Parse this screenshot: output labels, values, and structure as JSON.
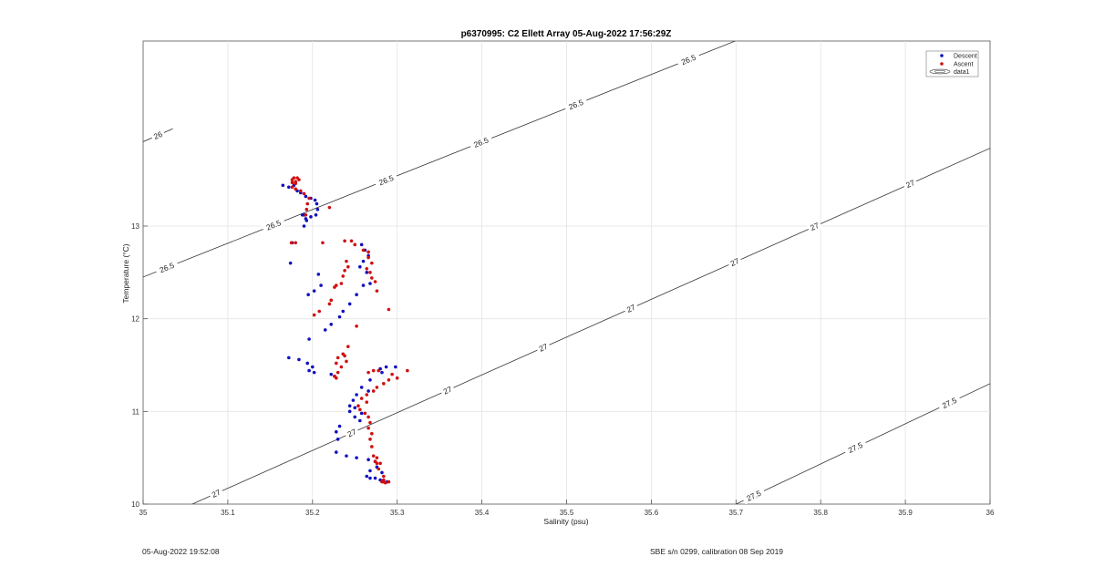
{
  "chart_data": {
    "type": "scatter",
    "title": "p6370995: C2 Ellett Array 05-Aug-2022 17:56:29Z",
    "xlabel": "Salinity (psu)",
    "ylabel": "Temperature (°C)",
    "xlim": [
      35,
      36
    ],
    "ylim": [
      10,
      14.0
    ],
    "x_ticks": [
      "35",
      "35.1",
      "35.2",
      "35.3",
      "35.4",
      "35.5",
      "35.6",
      "35.7",
      "35.8",
      "35.9",
      "36"
    ],
    "y_ticks": [
      "10",
      "11",
      "12",
      "13"
    ],
    "grid": true,
    "legend_position": "top-right",
    "legend": [
      "Descent",
      "Ascent",
      "data1"
    ],
    "colors": {
      "descent": "#1010c0",
      "ascent": "#d01010",
      "contour": "#333333"
    },
    "series": [
      {
        "name": "Descent",
        "points": [
          [
            35.165,
            13.44
          ],
          [
            35.172,
            13.42
          ],
          [
            35.178,
            13.44
          ],
          [
            35.182,
            13.38
          ],
          [
            35.186,
            13.36
          ],
          [
            35.192,
            13.32
          ],
          [
            35.198,
            13.3
          ],
          [
            35.203,
            13.28
          ],
          [
            35.205,
            13.24
          ],
          [
            35.206,
            13.18
          ],
          [
            35.204,
            13.12
          ],
          [
            35.198,
            13.1
          ],
          [
            35.193,
            13.06
          ],
          [
            35.19,
            13.0
          ],
          [
            35.174,
            12.6
          ],
          [
            35.207,
            12.48
          ],
          [
            35.21,
            12.36
          ],
          [
            35.202,
            12.3
          ],
          [
            35.195,
            12.26
          ],
          [
            35.19,
            13.12
          ],
          [
            35.188,
            13.12
          ],
          [
            35.192,
            13.08
          ],
          [
            35.176,
            12.82
          ],
          [
            35.258,
            12.8
          ],
          [
            35.262,
            12.74
          ],
          [
            35.266,
            12.68
          ],
          [
            35.26,
            12.62
          ],
          [
            35.256,
            12.56
          ],
          [
            35.264,
            12.5
          ],
          [
            35.268,
            12.38
          ],
          [
            35.26,
            12.36
          ],
          [
            35.252,
            12.26
          ],
          [
            35.244,
            12.16
          ],
          [
            35.236,
            12.08
          ],
          [
            35.232,
            12.02
          ],
          [
            35.222,
            11.94
          ],
          [
            35.215,
            11.88
          ],
          [
            35.196,
            11.78
          ],
          [
            35.172,
            11.58
          ],
          [
            35.184,
            11.56
          ],
          [
            35.194,
            11.52
          ],
          [
            35.2,
            11.48
          ],
          [
            35.202,
            11.42
          ],
          [
            35.196,
            11.44
          ],
          [
            35.222,
            11.4
          ],
          [
            35.226,
            11.38
          ],
          [
            35.28,
            11.46
          ],
          [
            35.287,
            11.48
          ],
          [
            35.298,
            11.48
          ],
          [
            35.282,
            11.42
          ],
          [
            35.268,
            11.34
          ],
          [
            35.258,
            11.26
          ],
          [
            35.266,
            11.22
          ],
          [
            35.252,
            11.18
          ],
          [
            35.248,
            11.12
          ],
          [
            35.244,
            11.06
          ],
          [
            35.25,
            11.04
          ],
          [
            35.244,
            11.0
          ],
          [
            35.258,
            10.98
          ],
          [
            35.25,
            10.94
          ],
          [
            35.256,
            10.9
          ],
          [
            35.232,
            10.84
          ],
          [
            35.228,
            10.78
          ],
          [
            35.23,
            10.7
          ],
          [
            35.228,
            10.56
          ],
          [
            35.24,
            10.52
          ],
          [
            35.252,
            10.5
          ],
          [
            35.266,
            10.48
          ],
          [
            35.274,
            10.46
          ],
          [
            35.276,
            10.4
          ],
          [
            35.268,
            10.36
          ],
          [
            35.282,
            10.34
          ],
          [
            35.264,
            10.3
          ],
          [
            35.268,
            10.28
          ],
          [
            35.274,
            10.28
          ],
          [
            35.28,
            10.26
          ],
          [
            35.284,
            10.24
          ],
          [
            35.288,
            10.24
          ]
        ]
      },
      {
        "name": "Ascent",
        "points": [
          [
            35.176,
            13.5
          ],
          [
            35.178,
            13.52
          ],
          [
            35.182,
            13.52
          ],
          [
            35.184,
            13.5
          ],
          [
            35.18,
            13.48
          ],
          [
            35.176,
            13.47
          ],
          [
            35.18,
            13.46
          ],
          [
            35.176,
            13.42
          ],
          [
            35.18,
            13.4
          ],
          [
            35.186,
            13.38
          ],
          [
            35.19,
            13.35
          ],
          [
            35.196,
            13.3
          ],
          [
            35.194,
            13.24
          ],
          [
            35.193,
            13.18
          ],
          [
            35.192,
            13.12
          ],
          [
            35.24,
            12.62
          ],
          [
            35.242,
            12.56
          ],
          [
            35.238,
            12.52
          ],
          [
            35.236,
            12.46
          ],
          [
            35.234,
            12.38
          ],
          [
            35.228,
            12.36
          ],
          [
            35.226,
            12.34
          ],
          [
            35.22,
            13.2
          ],
          [
            35.222,
            12.2
          ],
          [
            35.22,
            12.16
          ],
          [
            35.208,
            12.08
          ],
          [
            35.202,
            12.04
          ],
          [
            35.175,
            12.82
          ],
          [
            35.18,
            12.82
          ],
          [
            35.212,
            12.82
          ],
          [
            35.238,
            12.84
          ],
          [
            35.246,
            12.84
          ],
          [
            35.25,
            12.8
          ],
          [
            35.26,
            12.74
          ],
          [
            35.266,
            12.72
          ],
          [
            35.266,
            12.66
          ],
          [
            35.27,
            12.6
          ],
          [
            35.264,
            12.54
          ],
          [
            35.268,
            12.5
          ],
          [
            35.27,
            12.44
          ],
          [
            35.274,
            12.4
          ],
          [
            35.276,
            12.3
          ],
          [
            35.29,
            12.1
          ],
          [
            35.252,
            11.92
          ],
          [
            35.242,
            11.7
          ],
          [
            35.236,
            11.62
          ],
          [
            35.23,
            11.58
          ],
          [
            35.228,
            11.52
          ],
          [
            35.238,
            11.6
          ],
          [
            35.24,
            11.54
          ],
          [
            35.234,
            11.48
          ],
          [
            35.23,
            11.42
          ],
          [
            35.226,
            11.38
          ],
          [
            35.228,
            11.36
          ],
          [
            35.272,
            11.44
          ],
          [
            35.278,
            11.44
          ],
          [
            35.266,
            11.42
          ],
          [
            35.294,
            11.4
          ],
          [
            35.3,
            11.36
          ],
          [
            35.312,
            11.44
          ],
          [
            35.29,
            11.34
          ],
          [
            35.284,
            11.3
          ],
          [
            35.276,
            11.26
          ],
          [
            35.272,
            11.22
          ],
          [
            35.264,
            11.18
          ],
          [
            35.258,
            11.14
          ],
          [
            35.264,
            11.1
          ],
          [
            35.254,
            11.06
          ],
          [
            35.256,
            11.02
          ],
          [
            35.262,
            10.98
          ],
          [
            35.266,
            10.94
          ],
          [
            35.268,
            10.88
          ],
          [
            35.266,
            10.82
          ],
          [
            35.27,
            10.76
          ],
          [
            35.268,
            10.7
          ],
          [
            35.27,
            10.62
          ],
          [
            35.272,
            10.52
          ],
          [
            35.276,
            10.5
          ],
          [
            35.274,
            10.46
          ],
          [
            35.276,
            10.44
          ],
          [
            35.28,
            10.44
          ],
          [
            35.278,
            10.38
          ],
          [
            35.284,
            10.3
          ],
          [
            35.284,
            10.26
          ],
          [
            35.282,
            10.24
          ],
          [
            35.286,
            10.23
          ],
          [
            35.29,
            10.24
          ]
        ]
      }
    ],
    "contours": [
      {
        "label": "26",
        "points": [
          [
            35.0,
            13.91
          ],
          [
            35.035,
            14.05
          ]
        ],
        "labels_at": [
          0.5
        ]
      },
      {
        "label": "26.5",
        "points": [
          [
            35.0,
            12.45
          ],
          [
            35.7,
            15.0
          ]
        ],
        "labels_at": [
          0.04,
          0.22,
          0.41,
          0.57,
          0.73,
          0.92
        ]
      },
      {
        "label": "27",
        "points": [
          [
            35.058,
            10.0
          ],
          [
            36.0,
            13.84
          ]
        ],
        "labels_at": [
          0.03,
          0.2,
          0.32,
          0.44,
          0.55,
          0.68,
          0.78,
          0.9
        ]
      },
      {
        "label": "27.5",
        "points": [
          [
            35.7,
            10.0
          ],
          [
            36.0,
            11.3
          ]
        ],
        "labels_at": [
          0.07,
          0.47,
          0.84
        ]
      }
    ]
  },
  "footer": {
    "left": "05-Aug-2022 19:52:08",
    "right": "SBE s/n 0299, calibration 08 Sep 2019"
  }
}
